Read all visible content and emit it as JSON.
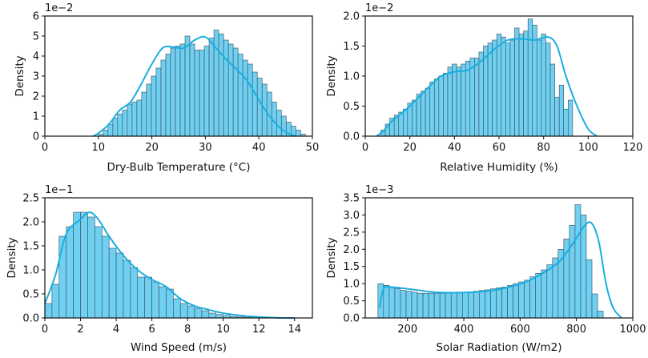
{
  "chart_data": [
    {
      "type": "histogram",
      "id": "temperature",
      "xlabel": "Dry-Bulb Temperature (°C)",
      "ylabel": "Density",
      "scale_label": "1e−2",
      "xlim": [
        0,
        50
      ],
      "ylim": [
        0,
        6
      ],
      "x_ticks": [
        "0",
        "10",
        "20",
        "30",
        "40",
        "50"
      ],
      "x_tick_values": [
        0,
        10,
        20,
        30,
        40,
        50
      ],
      "y_ticks": [
        "0",
        "1",
        "2",
        "3",
        "4",
        "5",
        "6"
      ],
      "y_tick_values": [
        0,
        1,
        2,
        3,
        4,
        5,
        6
      ],
      "bin_start": 10,
      "bin_width": 0.9,
      "values": [
        0.1,
        0.3,
        0.6,
        0.9,
        1.1,
        1.3,
        1.6,
        1.7,
        1.8,
        2.2,
        2.6,
        3.0,
        3.4,
        3.8,
        4.1,
        4.4,
        4.5,
        4.6,
        5.0,
        4.6,
        4.3,
        4.3,
        4.5,
        4.9,
        5.3,
        5.1,
        4.8,
        4.6,
        4.4,
        4.1,
        3.8,
        3.6,
        3.2,
        2.9,
        2.6,
        2.2,
        1.7,
        1.3,
        1.0,
        0.7,
        0.5,
        0.3,
        0.1
      ],
      "kde": [
        [
          9,
          0
        ],
        [
          10,
          0.15
        ],
        [
          12,
          0.6
        ],
        [
          14,
          1.3
        ],
        [
          16,
          1.7
        ],
        [
          18,
          2.6
        ],
        [
          20,
          3.6
        ],
        [
          22,
          4.4
        ],
        [
          24,
          4.45
        ],
        [
          26,
          4.4
        ],
        [
          28,
          4.8
        ],
        [
          30,
          4.95
        ],
        [
          32,
          4.4
        ],
        [
          34,
          3.8
        ],
        [
          36,
          3.3
        ],
        [
          38,
          2.7
        ],
        [
          40,
          1.8
        ],
        [
          42,
          1.0
        ],
        [
          44,
          0.4
        ],
        [
          46,
          0.08
        ],
        [
          47,
          0
        ]
      ],
      "bar_color": "#6fd0f2",
      "line_color": "#1aaee0"
    },
    {
      "type": "histogram",
      "id": "humidity",
      "xlabel": "Relative Humidity (%)",
      "ylabel": "Density",
      "scale_label": "1e−2",
      "xlim": [
        0,
        120
      ],
      "ylim": [
        0,
        2.0
      ],
      "x_ticks": [
        "0",
        "20",
        "40",
        "60",
        "80",
        "100",
        "120"
      ],
      "x_tick_values": [
        0,
        20,
        40,
        60,
        80,
        100,
        120
      ],
      "y_ticks": [
        "0.0",
        "0.5",
        "1.0",
        "1.5",
        "2.0"
      ],
      "y_tick_values": [
        0,
        0.5,
        1.0,
        1.5,
        2.0
      ],
      "bin_start": 7,
      "bin_width": 2,
      "values": [
        0.1,
        0.2,
        0.3,
        0.35,
        0.4,
        0.45,
        0.55,
        0.6,
        0.7,
        0.75,
        0.8,
        0.9,
        0.95,
        1.0,
        1.05,
        1.15,
        1.2,
        1.15,
        1.2,
        1.25,
        1.3,
        1.3,
        1.4,
        1.5,
        1.55,
        1.6,
        1.7,
        1.65,
        1.55,
        1.6,
        1.8,
        1.7,
        1.75,
        1.95,
        1.85,
        1.6,
        1.7,
        1.55,
        1.2,
        0.65,
        0.85,
        0.45,
        0.6
      ],
      "kde": [
        [
          5,
          0
        ],
        [
          8,
          0.08
        ],
        [
          12,
          0.25
        ],
        [
          20,
          0.5
        ],
        [
          28,
          0.8
        ],
        [
          34,
          1.0
        ],
        [
          40,
          1.07
        ],
        [
          46,
          1.1
        ],
        [
          52,
          1.25
        ],
        [
          58,
          1.45
        ],
        [
          64,
          1.6
        ],
        [
          70,
          1.62
        ],
        [
          76,
          1.6
        ],
        [
          82,
          1.65
        ],
        [
          86,
          1.5
        ],
        [
          90,
          1.0
        ],
        [
          95,
          0.5
        ],
        [
          100,
          0.12
        ],
        [
          104,
          0
        ]
      ],
      "bar_color": "#6fd0f2",
      "line_color": "#1aaee0"
    },
    {
      "type": "histogram",
      "id": "wind",
      "xlabel": "Wind Speed (m/s)",
      "ylabel": "Density",
      "scale_label": "1e−1",
      "xlim": [
        0,
        15
      ],
      "ylim": [
        0,
        2.5
      ],
      "x_ticks": [
        "0",
        "2",
        "4",
        "6",
        "8",
        "10",
        "12",
        "14"
      ],
      "x_tick_values": [
        0,
        2,
        4,
        6,
        8,
        10,
        12,
        14
      ],
      "y_ticks": [
        "0.0",
        "0.5",
        "1.0",
        "1.5",
        "2.0",
        "2.5"
      ],
      "y_tick_values": [
        0,
        0.5,
        1.0,
        1.5,
        2.0,
        2.5
      ],
      "bin_start": 0,
      "bin_width": 0.4,
      "values": [
        0.3,
        0.7,
        1.7,
        1.9,
        2.2,
        2.2,
        2.1,
        1.9,
        1.7,
        1.45,
        1.35,
        1.2,
        1.05,
        0.85,
        0.85,
        0.75,
        0.65,
        0.6,
        0.4,
        0.3,
        0.25,
        0.2,
        0.15,
        0.1,
        0.07,
        0.05,
        0.03,
        0.02,
        0.01
      ],
      "kde": [
        [
          0,
          0.3
        ],
        [
          0.6,
          0.9
        ],
        [
          1.2,
          1.75
        ],
        [
          2.0,
          2.05
        ],
        [
          2.5,
          2.2
        ],
        [
          3.0,
          2.05
        ],
        [
          3.6,
          1.7
        ],
        [
          4.4,
          1.3
        ],
        [
          5.2,
          1.0
        ],
        [
          6.0,
          0.8
        ],
        [
          6.8,
          0.65
        ],
        [
          7.6,
          0.4
        ],
        [
          8.4,
          0.25
        ],
        [
          9.2,
          0.17
        ],
        [
          10,
          0.1
        ],
        [
          11,
          0.05
        ],
        [
          12,
          0.02
        ],
        [
          13,
          0.005
        ],
        [
          14,
          0
        ]
      ],
      "bar_color": "#6fd0f2",
      "line_color": "#1aaee0"
    },
    {
      "type": "histogram",
      "id": "solar",
      "xlabel": "Solar Radiation (W/m2)",
      "ylabel": "Density",
      "scale_label": "1e−3",
      "xlim": [
        50,
        1000
      ],
      "ylim": [
        0,
        3.5
      ],
      "x_ticks": [
        "200",
        "400",
        "600",
        "800",
        "1000"
      ],
      "x_tick_values": [
        200,
        400,
        600,
        800,
        1000
      ],
      "y_ticks": [
        "0.0",
        "0.5",
        "1.0",
        "1.5",
        "2.0",
        "2.5",
        "3.0",
        "3.5"
      ],
      "y_tick_values": [
        0,
        0.5,
        1.0,
        1.5,
        2.0,
        2.5,
        3.0,
        3.5
      ],
      "bin_start": 95,
      "bin_width": 20,
      "values": [
        1.0,
        0.95,
        0.9,
        0.85,
        0.8,
        0.78,
        0.75,
        0.72,
        0.72,
        0.72,
        0.72,
        0.72,
        0.72,
        0.74,
        0.75,
        0.75,
        0.76,
        0.78,
        0.8,
        0.82,
        0.85,
        0.88,
        0.9,
        0.95,
        1.0,
        1.05,
        1.1,
        1.2,
        1.3,
        1.4,
        1.55,
        1.75,
        2.0,
        2.3,
        2.7,
        3.3,
        3.0,
        1.7,
        0.7,
        0.2
      ],
      "kde": [
        [
          100,
          0.3
        ],
        [
          115,
          0.85
        ],
        [
          140,
          0.9
        ],
        [
          200,
          0.85
        ],
        [
          300,
          0.75
        ],
        [
          400,
          0.74
        ],
        [
          500,
          0.8
        ],
        [
          560,
          0.9
        ],
        [
          620,
          1.05
        ],
        [
          680,
          1.3
        ],
        [
          740,
          1.65
        ],
        [
          790,
          2.2
        ],
        [
          830,
          2.7
        ],
        [
          855,
          2.75
        ],
        [
          880,
          2.2
        ],
        [
          905,
          1.0
        ],
        [
          930,
          0.3
        ],
        [
          960,
          0
        ]
      ],
      "bar_color": "#6fd0f2",
      "line_color": "#1aaee0"
    }
  ]
}
